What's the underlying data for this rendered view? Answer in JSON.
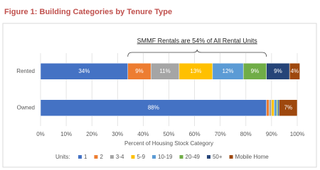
{
  "chart_data": {
    "type": "stacked-bar-horizontal",
    "title": "Figure 1: Building Categories by Tenure Type",
    "annotation": "SMMF Rentals are 54% of All Rental Units",
    "categories": [
      "Rented",
      "Owned"
    ],
    "series": [
      {
        "name": "1",
        "color": "#4472c4",
        "values": [
          34,
          88
        ],
        "value_labels": [
          "34%",
          "88%"
        ]
      },
      {
        "name": "2",
        "color": "#ed7d31",
        "values": [
          9,
          1
        ],
        "value_labels": [
          "9%",
          null
        ]
      },
      {
        "name": "3-4",
        "color": "#a5a5a5",
        "values": [
          11,
          1
        ],
        "value_labels": [
          "11%",
          null
        ]
      },
      {
        "name": "5-9",
        "color": "#ffc000",
        "values": [
          13,
          1
        ],
        "value_labels": [
          "13%",
          null
        ]
      },
      {
        "name": "10-19",
        "color": "#5b9bd5",
        "values": [
          12,
          1
        ],
        "value_labels": [
          "12%",
          null
        ]
      },
      {
        "name": "20-49",
        "color": "#70ad47",
        "values": [
          9,
          0.5
        ],
        "value_labels": [
          "9%",
          null
        ]
      },
      {
        "name": "50+",
        "color": "#264478",
        "values": [
          9,
          0.5
        ],
        "value_labels": [
          "9%",
          null
        ]
      },
      {
        "name": "Mobile Home",
        "color": "#9e480e",
        "values": [
          4,
          7
        ],
        "value_labels": [
          "4%",
          "7%"
        ]
      }
    ],
    "xlim": [
      0,
      100
    ],
    "xticks": [
      {
        "value": 0,
        "label": "0%"
      },
      {
        "value": 10,
        "label": "10%"
      },
      {
        "value": 20,
        "label": "20%"
      },
      {
        "value": 30,
        "label": "30%"
      },
      {
        "value": 40,
        "label": "40%"
      },
      {
        "value": 50,
        "label": "50%"
      },
      {
        "value": 60,
        "label": "60%"
      },
      {
        "value": 70,
        "label": "70%"
      },
      {
        "value": 80,
        "label": "80%"
      },
      {
        "value": 90,
        "label": "90%"
      },
      {
        "value": 100,
        "label": "100%"
      }
    ],
    "xlabel": "Percent of Housing Stock Category",
    "legend_title": "Units:",
    "grid": true
  }
}
